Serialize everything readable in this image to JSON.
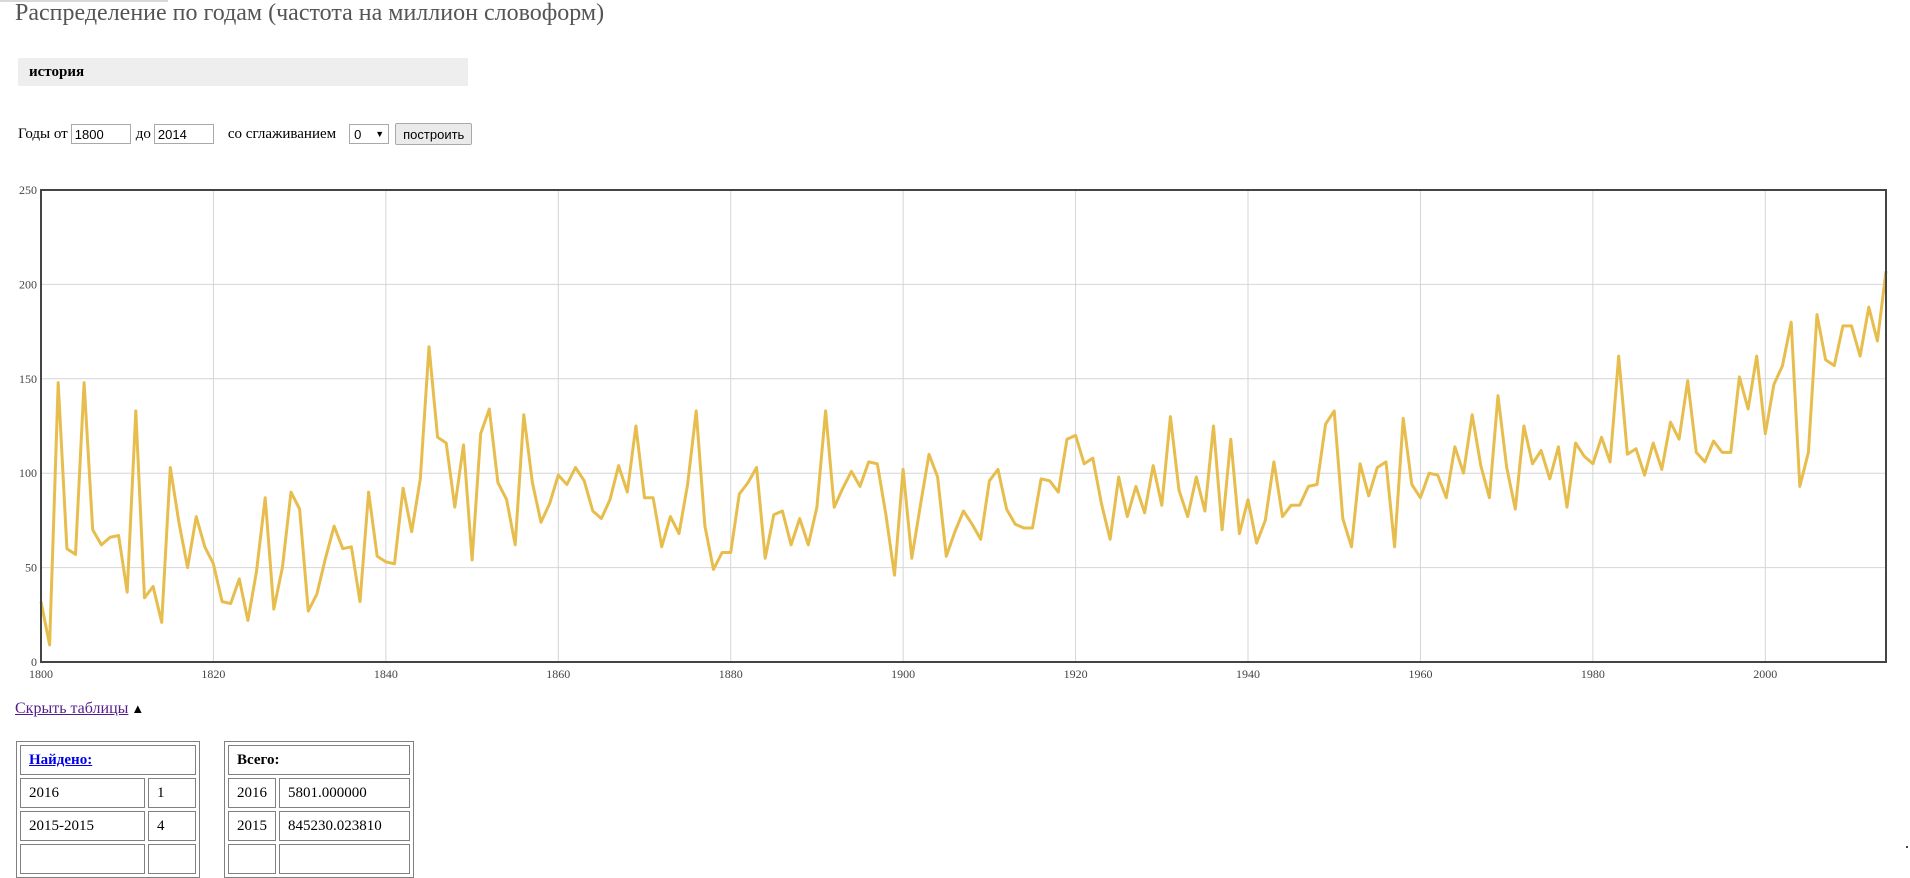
{
  "page": {
    "title": "Распределение по годам (частота на миллион словоформ)",
    "query": "история"
  },
  "controls": {
    "years_from_label": "Годы от",
    "year_from": "1800",
    "to_label": "до",
    "year_to": "2014",
    "smoothing_label": "со сглаживанием",
    "smoothing_value": "0",
    "build_button": "построить"
  },
  "colors": {
    "line": "#e7bd4e",
    "grid": "#d6d6d6",
    "frame": "#444444"
  },
  "chart_data": {
    "type": "line",
    "title": "",
    "xlabel": "",
    "ylabel": "",
    "xlim": [
      1800,
      2014
    ],
    "ylim": [
      0,
      250
    ],
    "xticks": [
      1800,
      1820,
      1840,
      1860,
      1880,
      1900,
      1920,
      1940,
      1960,
      1980,
      2000
    ],
    "yticks": [
      0,
      50,
      100,
      150,
      200,
      250
    ],
    "grid": true,
    "series": [
      {
        "x": [
          1800,
          1801,
          1802,
          1803,
          1804,
          1805,
          1806,
          1807,
          1808,
          1809,
          1810,
          1811,
          1812,
          1813,
          1814,
          1815,
          1816,
          1817,
          1818,
          1819,
          1820,
          1821,
          1822,
          1823,
          1824,
          1825,
          1826,
          1827,
          1828,
          1829,
          1830,
          1831,
          1832,
          1833,
          1834,
          1835,
          1836,
          1837,
          1838,
          1839,
          1840,
          1841,
          1842,
          1843,
          1844,
          1845,
          1846,
          1847,
          1848,
          1849,
          1850,
          1851,
          1852,
          1853,
          1854,
          1855,
          1856,
          1857,
          1858,
          1859,
          1860,
          1861,
          1862,
          1863,
          1864,
          1865,
          1866,
          1867,
          1868,
          1869,
          1870,
          1871,
          1872,
          1873,
          1874,
          1875,
          1876,
          1877,
          1878,
          1879,
          1880,
          1881,
          1882,
          1883,
          1884,
          1885,
          1886,
          1887,
          1888,
          1889,
          1890,
          1891,
          1892,
          1893,
          1894,
          1895,
          1896,
          1897,
          1898,
          1899,
          1900,
          1901,
          1902,
          1903,
          1904,
          1905,
          1906,
          1907,
          1908,
          1909,
          1910,
          1911,
          1912,
          1913,
          1914,
          1915,
          1916,
          1917,
          1918,
          1919,
          1920,
          1921,
          1922,
          1923,
          1924,
          1925,
          1926,
          1927,
          1928,
          1929,
          1930,
          1931,
          1932,
          1933,
          1934,
          1935,
          1936,
          1937,
          1938,
          1939,
          1940,
          1941,
          1942,
          1943,
          1944,
          1945,
          1946,
          1947,
          1948,
          1949,
          1950,
          1951,
          1952,
          1953,
          1954,
          1955,
          1956,
          1957,
          1958,
          1959,
          1960,
          1961,
          1962,
          1963,
          1964,
          1965,
          1966,
          1967,
          1968,
          1969,
          1970,
          1971,
          1972,
          1973,
          1974,
          1975,
          1976,
          1977,
          1978,
          1979,
          1980,
          1981,
          1982,
          1983,
          1984,
          1985,
          1986,
          1987,
          1988,
          1989,
          1990,
          1991,
          1992,
          1993,
          1994,
          1995,
          1996,
          1997,
          1998,
          1999,
          2000,
          2001,
          2002,
          2003,
          2004,
          2005,
          2006,
          2007,
          2008,
          2009,
          2010,
          2011,
          2012,
          2013,
          2014
        ],
        "y": [
          32,
          9,
          148,
          60,
          57,
          148,
          70,
          62,
          66,
          67,
          37,
          133,
          34,
          40,
          21,
          103,
          74,
          50,
          77,
          61,
          52,
          32,
          31,
          44,
          22,
          48,
          87,
          28,
          50,
          90,
          81,
          27,
          36,
          55,
          72,
          60,
          61,
          32,
          90,
          56,
          53,
          52,
          92,
          69,
          97,
          167,
          119,
          116,
          82,
          115,
          54,
          121,
          134,
          95,
          86,
          62,
          131,
          95,
          74,
          84,
          99,
          94,
          103,
          96,
          80,
          76,
          86,
          104,
          90,
          125,
          87,
          87,
          61,
          77,
          68,
          94,
          133,
          72,
          49,
          58,
          58,
          89,
          95,
          103,
          55,
          78,
          80,
          62,
          76,
          62,
          82,
          133,
          82,
          92,
          101,
          93,
          106,
          105,
          78,
          46,
          102,
          55,
          83,
          110,
          98,
          56,
          69,
          80,
          73,
          65,
          96,
          102,
          81,
          73,
          71,
          71,
          97,
          96,
          90,
          118,
          120,
          105,
          108,
          84,
          65,
          98,
          77,
          93,
          79,
          104,
          83,
          130,
          91,
          77,
          98,
          80,
          125,
          70,
          118,
          68,
          86,
          63,
          75,
          106,
          77,
          83,
          83,
          93,
          94,
          126,
          133,
          76,
          61,
          105,
          88,
          103,
          106,
          61,
          129,
          94,
          87,
          100,
          99,
          87,
          114,
          100,
          131,
          104,
          87,
          141,
          103,
          81,
          125,
          105,
          112,
          97,
          114,
          82,
          116,
          109,
          105,
          119,
          106,
          162,
          110,
          113,
          99,
          116,
          102,
          127,
          118,
          149,
          111,
          106,
          117,
          111,
          111,
          151,
          134,
          162,
          121,
          147,
          157,
          180,
          93,
          111,
          184,
          160,
          157,
          178,
          178,
          162,
          188,
          170,
          207
        ]
      }
    ]
  },
  "hide_tables": {
    "label": "Скрыть таблицы",
    "triangle": "▲"
  },
  "found_table": {
    "header": "Найдено:",
    "rows": [
      [
        "2016",
        "1"
      ],
      [
        "2015-2015",
        "4"
      ]
    ]
  },
  "total_table": {
    "header": "Всего:",
    "rows": [
      [
        "2016",
        "5801.000000"
      ],
      [
        "2015",
        "845230.023810"
      ]
    ]
  }
}
